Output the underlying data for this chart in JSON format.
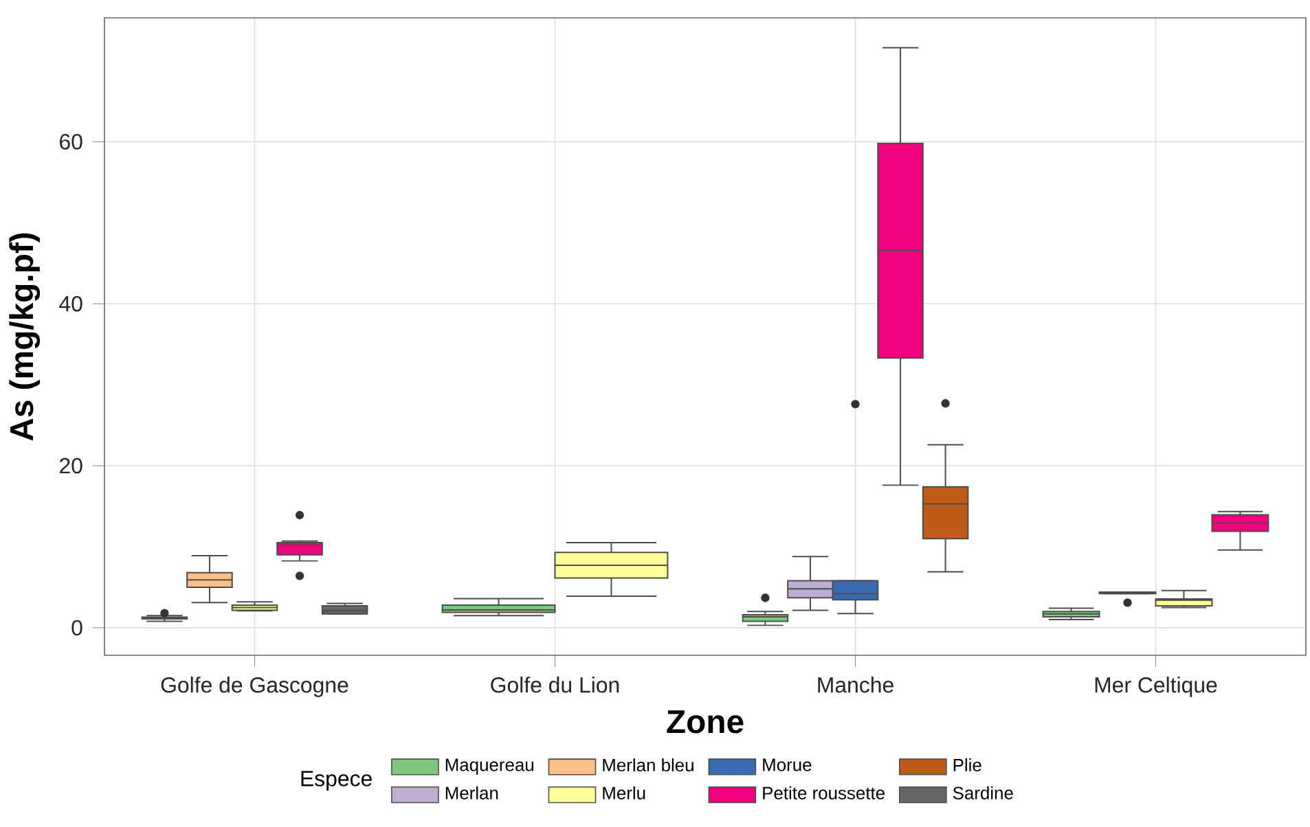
{
  "chart_data": {
    "type": "box",
    "xlabel": "Zone",
    "ylabel": "As (mg/kg.pf)",
    "legend_title": "Espece",
    "categories": [
      "Golfe de Gascogne",
      "Golfe du Lion",
      "Manche",
      "Mer Celtique"
    ],
    "ylim": [
      -3.4,
      75.3
    ],
    "yticks": [
      0,
      20,
      40,
      60
    ],
    "grid": true,
    "legend": "bottom",
    "series": [
      {
        "name": "Maquereau",
        "color": "#7fc97f",
        "boxes": [
          {
            "low": 0.8,
            "q1": 1.1,
            "median": 1.2,
            "q3": 1.3,
            "high": 1.5,
            "outliers": [
              1.8
            ]
          },
          {
            "low": 1.5,
            "q1": 1.9,
            "median": 2.2,
            "q3": 2.8,
            "high": 3.6
          },
          {
            "low": 0.3,
            "q1": 0.8,
            "median": 1.35,
            "q3": 1.6,
            "high": 2.0,
            "outliers": [
              3.7
            ]
          },
          {
            "low": 1.0,
            "q1": 1.35,
            "median": 1.7,
            "q3": 2.0,
            "high": 2.4
          }
        ]
      },
      {
        "name": "Merlan",
        "color": "#beaed4",
        "boxes": [
          null,
          null,
          {
            "low": 2.15,
            "q1": 3.7,
            "median": 4.8,
            "q3": 5.8,
            "high": 8.8
          },
          {
            "low": 4.2,
            "q1": 4.2,
            "median": 4.3,
            "q3": 4.4,
            "high": 4.4,
            "outliers": [
              3.1
            ]
          }
        ]
      },
      {
        "name": "Merlan bleu",
        "color": "#fdc086",
        "boxes": [
          {
            "low": 3.1,
            "q1": 5.0,
            "median": 5.9,
            "q3": 6.8,
            "high": 8.9
          },
          null,
          null,
          null
        ]
      },
      {
        "name": "Merlu",
        "color": "#ffff99",
        "boxes": [
          {
            "low": 2.1,
            "q1": 2.15,
            "median": 2.5,
            "q3": 2.8,
            "high": 3.2
          },
          {
            "low": 3.9,
            "q1": 6.15,
            "median": 7.7,
            "q3": 9.3,
            "high": 10.5
          },
          null,
          {
            "low": 2.5,
            "q1": 2.7,
            "median": 3.4,
            "q3": 3.55,
            "high": 4.6
          }
        ]
      },
      {
        "name": "Morue",
        "color": "#386cb0",
        "boxes": [
          null,
          null,
          {
            "low": 1.75,
            "q1": 3.45,
            "median": 4.2,
            "q3": 5.8,
            "high": 5.8,
            "outliers": [
              27.6
            ]
          },
          null
        ]
      },
      {
        "name": "Petite roussette",
        "color": "#f0027f",
        "boxes": [
          {
            "low": 8.25,
            "q1": 9.0,
            "median": 10.2,
            "q3": 10.5,
            "high": 10.7,
            "outliers": [
              13.9,
              6.4
            ]
          },
          null,
          {
            "low": 17.6,
            "q1": 33.3,
            "median": 46.6,
            "q3": 59.8,
            "high": 71.6
          },
          {
            "low": 9.6,
            "q1": 11.9,
            "median": 12.9,
            "q3": 13.95,
            "high": 14.35
          }
        ]
      },
      {
        "name": "Plie",
        "color": "#bf5b17",
        "boxes": [
          null,
          null,
          {
            "low": 6.9,
            "q1": 11.0,
            "median": 15.3,
            "q3": 17.4,
            "high": 22.6,
            "outliers": [
              27.7
            ]
          },
          null
        ]
      },
      {
        "name": "Sardine",
        "color": "#666666",
        "boxes": [
          {
            "low": 1.7,
            "q1": 1.7,
            "median": 2.1,
            "q3": 2.7,
            "high": 3.0
          },
          null,
          null,
          null
        ]
      }
    ]
  }
}
